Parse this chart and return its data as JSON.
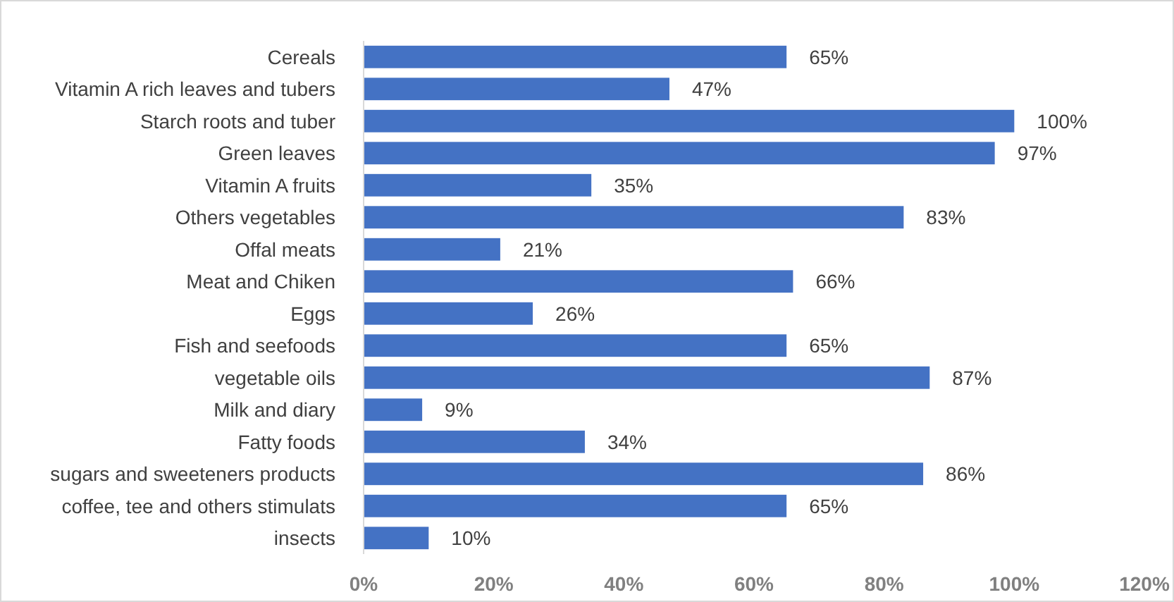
{
  "chart_data": {
    "type": "bar",
    "orientation": "horizontal",
    "categories": [
      "Cereals",
      "Vitamin A rich leaves and tubers",
      "Starch roots and tuber",
      "Green leaves",
      "Vitamin A fruits",
      "Others vegetables",
      "Offal meats",
      "Meat and Chiken",
      "Eggs",
      "Fish and seefoods",
      "vegetable oils",
      "Milk and diary",
      "Fatty foods",
      "sugars and sweeteners products",
      "coffee, tee and others stimulats",
      "insects"
    ],
    "values": [
      65,
      47,
      100,
      97,
      35,
      83,
      21,
      66,
      26,
      65,
      87,
      9,
      34,
      86,
      65,
      10
    ],
    "value_labels": [
      "65%",
      "47%",
      "100%",
      "97%",
      "35%",
      "83%",
      "21%",
      "66%",
      "26%",
      "65%",
      "87%",
      "9%",
      "34%",
      "86%",
      "65%",
      "10%"
    ],
    "color": "#4472c4",
    "xlim": [
      0,
      120
    ],
    "xticks": [
      {
        "value": 0,
        "label": "0%"
      },
      {
        "value": 20,
        "label": "20%"
      },
      {
        "value": 40,
        "label": "40%"
      },
      {
        "value": 60,
        "label": "60%"
      },
      {
        "value": 80,
        "label": "80%"
      },
      {
        "value": 100,
        "label": "100%"
      },
      {
        "value": 120,
        "label": "120%"
      }
    ],
    "grid": false
  }
}
